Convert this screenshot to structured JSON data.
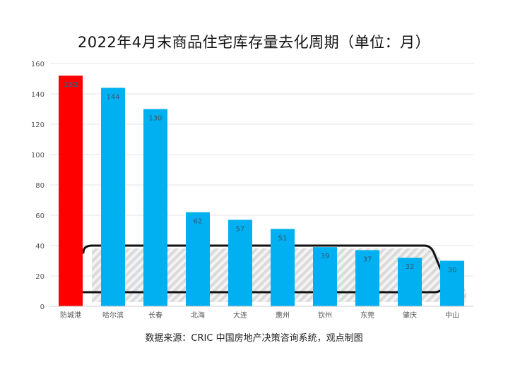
{
  "chart_data": {
    "type": "bar",
    "title": "2022年4月末商品住宅库存量去化周期（单位：月）",
    "categories": [
      "防城港",
      "哈尔滨",
      "长春",
      "北海",
      "大连",
      "惠州",
      "钦州",
      "东莞",
      "肇庆",
      "中山"
    ],
    "values": [
      152,
      144,
      130,
      62,
      57,
      51,
      39,
      37,
      32,
      30
    ],
    "value_labels": [
      "152",
      "144",
      "130",
      "62",
      "57",
      "51",
      "39",
      "37",
      "32",
      "30"
    ],
    "ylim": [
      0,
      160
    ],
    "yticks": [
      "0",
      "20",
      "40",
      "60",
      "80",
      "100",
      "120",
      "140",
      "160"
    ],
    "grid": true,
    "xlabel": "",
    "ylabel": "",
    "colors": {
      "highlight_bar": "#ff0000",
      "bar": "#00b0f0",
      "gridline": "#e6e6e6",
      "highlight_label": "#000000",
      "label": "#3b5a78"
    },
    "highlight_index": 0
  },
  "source": "数据来源：CRIC 中国房地产决策咨询系统，观点制图"
}
